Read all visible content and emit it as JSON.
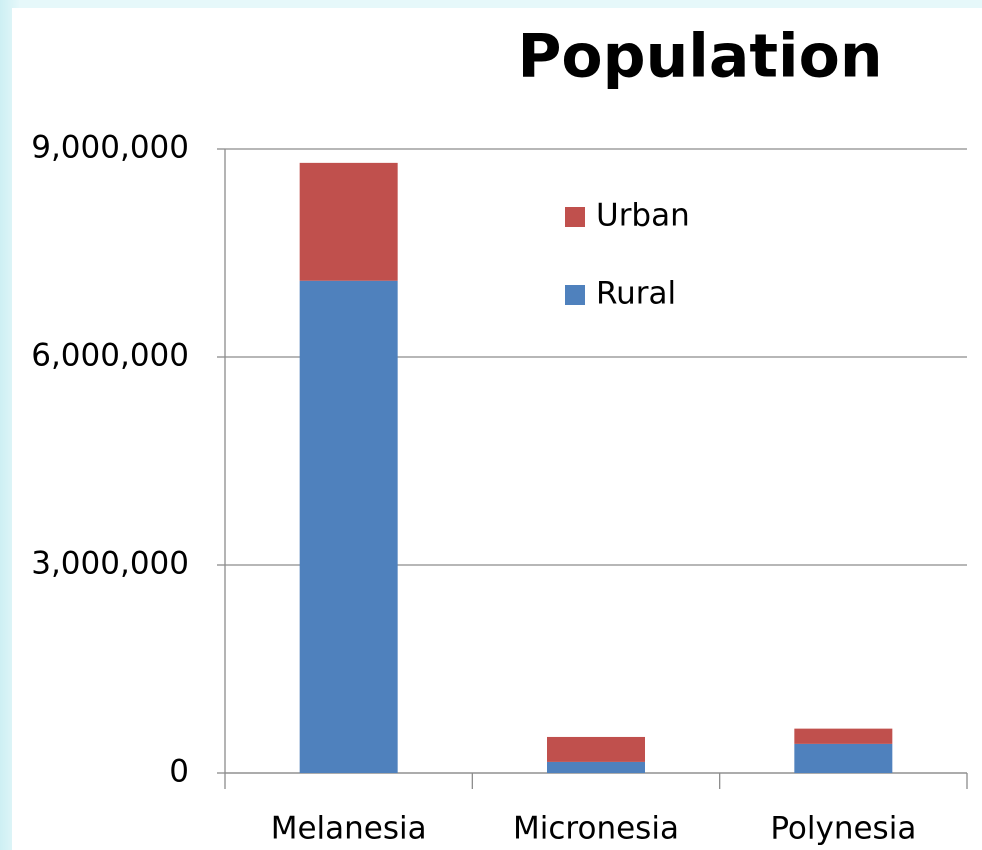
{
  "chart_data": {
    "type": "stacked_bar",
    "title": "Population",
    "categories": [
      "Melanesia",
      "Micronesia",
      "Polynesia"
    ],
    "series": [
      {
        "name": "Rural",
        "color": "#4f81bd",
        "values": [
          7100000,
          160000,
          420000
        ]
      },
      {
        "name": "Urban",
        "color": "#c0504d",
        "values": [
          1700000,
          360000,
          220000
        ]
      }
    ],
    "ylim": [
      0,
      9000000
    ],
    "yticks": [
      0,
      {
        "value": 3000000,
        "label": "3,000,000"
      },
      {
        "value": 6000000,
        "label": "6,000,000"
      },
      {
        "value": 9000000,
        "label": "9,000,000"
      }
    ],
    "grid": true,
    "legend": "top-right"
  }
}
